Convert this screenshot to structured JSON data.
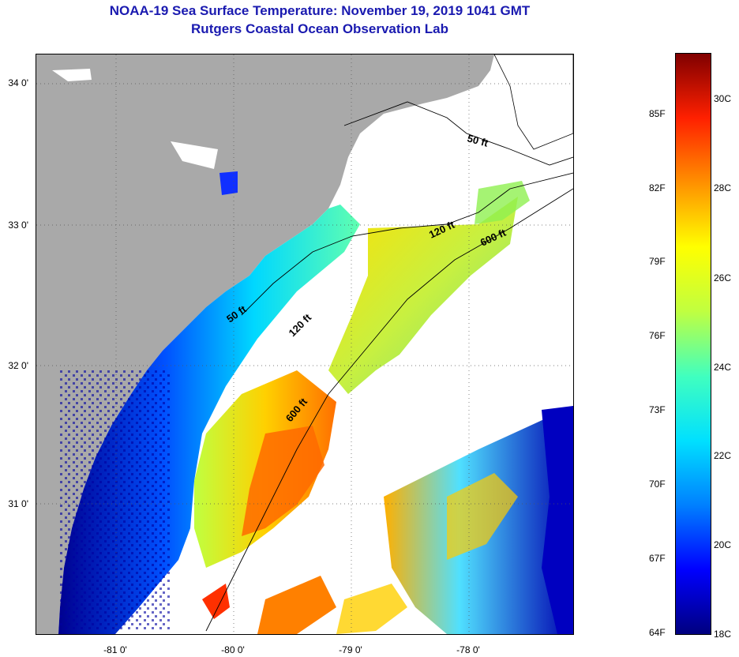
{
  "header": {
    "title": "NOAA-19 Sea Surface Temperature:  November 19, 2019 1041 GMT",
    "subtitle": "Rutgers Coastal Ocean Observation Lab"
  },
  "map": {
    "lat_labels": [
      "34 0'",
      "33 0'",
      "32 0'",
      "31 0'"
    ],
    "lon_labels": [
      "-81 0'",
      "-80 0'",
      "-79 0'",
      "-78 0'"
    ],
    "depth_contours": [
      "50 ft",
      "120 ft",
      "600 ft",
      "50 ft",
      "120 ft",
      "600 ft"
    ]
  },
  "colorbar": {
    "fahrenheit_labels": [
      "85F",
      "82F",
      "79F",
      "76F",
      "73F",
      "70F",
      "67F",
      "64F"
    ],
    "celsius_labels": [
      "30C",
      "28C",
      "26C",
      "24C",
      "22C",
      "20C",
      "18C"
    ],
    "colors": [
      "#00007f",
      "#0000ff",
      "#0080ff",
      "#00e0ff",
      "#40ffbf",
      "#c0ff40",
      "#ffff00",
      "#ff9000",
      "#ff2000",
      "#800000"
    ]
  }
}
